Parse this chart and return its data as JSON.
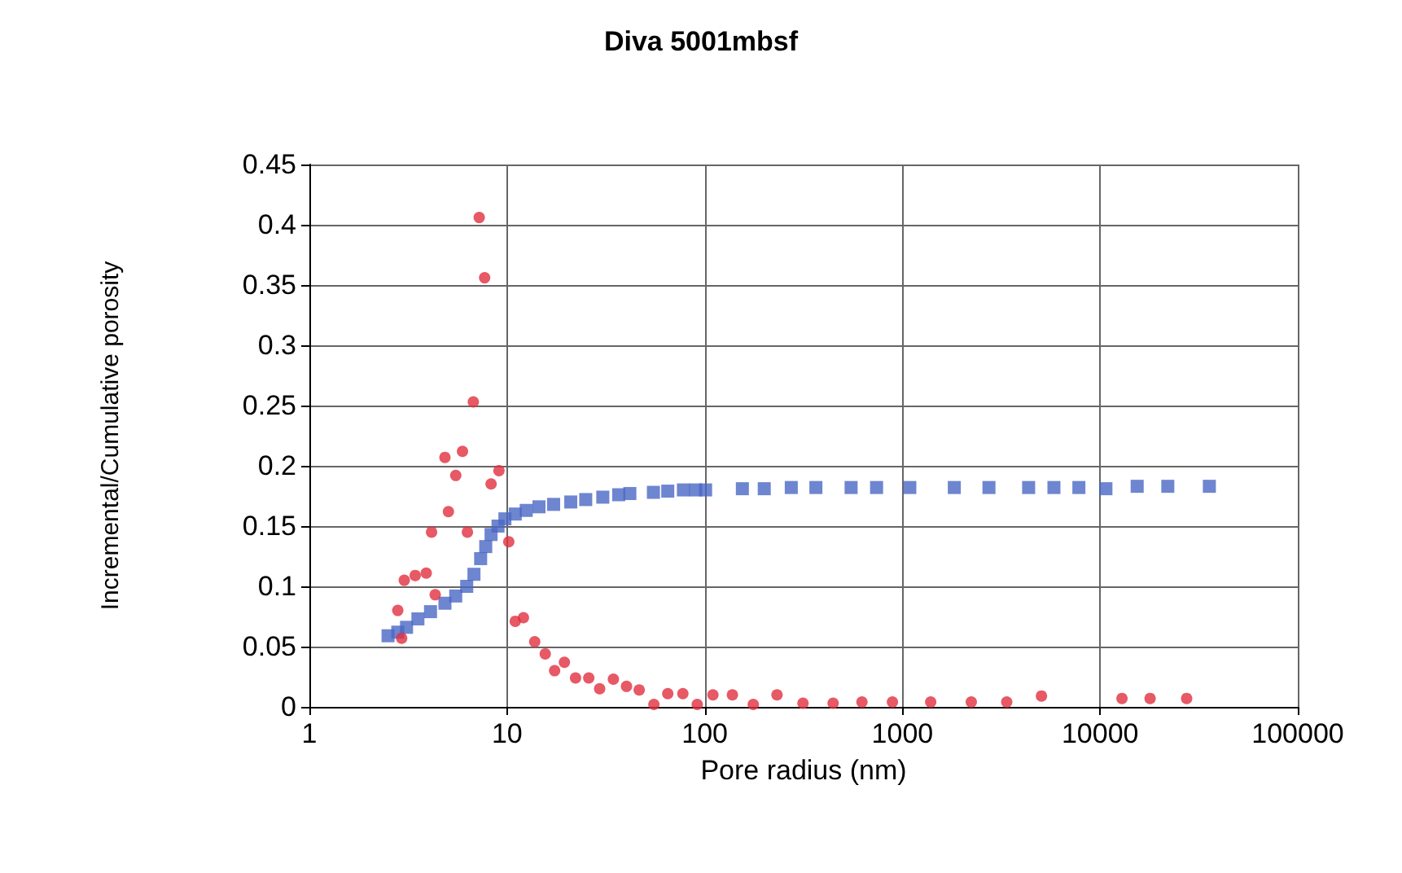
{
  "chart_data": {
    "type": "scatter",
    "title": "Diva 5001mbsf",
    "xlabel": "Pore radius (nm)",
    "ylabel": "Incremental/Cumulative porosity",
    "log": "x",
    "grid": true,
    "xlim": [
      1,
      100000
    ],
    "xticks": [
      1,
      10,
      100,
      1000,
      10000,
      100000
    ],
    "ylim": [
      0,
      0.45
    ],
    "yticks": [
      0,
      0.05,
      0.1,
      0.15,
      0.2,
      0.25,
      0.3,
      0.35,
      0.4,
      0.45
    ],
    "series": [
      {
        "color": "#4a66c4",
        "marker": "square",
        "x": [
          2.5,
          2.8,
          3.1,
          3.54,
          4.1,
          4.85,
          5.5,
          6.25,
          6.8,
          7.35,
          7.8,
          8.3,
          9.0,
          9.75,
          11,
          12.5,
          14.5,
          17.2,
          21,
          25,
          30.5,
          36.7,
          41.8,
          55,
          65,
          78,
          90,
          101,
          155,
          200,
          274,
          365,
          550,
          740,
          1090,
          1830,
          2740,
          4350,
          5840,
          7810,
          10700,
          15400,
          22000,
          35700
        ],
        "values": [
          0.059,
          0.062,
          0.066,
          0.073,
          0.079,
          0.086,
          0.092,
          0.1,
          0.11,
          0.123,
          0.133,
          0.143,
          0.15,
          0.156,
          0.16,
          0.163,
          0.166,
          0.168,
          0.17,
          0.172,
          0.174,
          0.176,
          0.177,
          0.178,
          0.179,
          0.18,
          0.18,
          0.18,
          0.181,
          0.181,
          0.182,
          0.182,
          0.182,
          0.182,
          0.182,
          0.182,
          0.182,
          0.182,
          0.182,
          0.182,
          0.181,
          0.183,
          0.183,
          0.183
        ]
      },
      {
        "color": "#e0303e",
        "marker": "circle",
        "x": [
          2.8,
          2.93,
          3.02,
          3.43,
          3.9,
          4.15,
          4.33,
          4.85,
          5.05,
          5.5,
          5.95,
          6.3,
          6.75,
          7.23,
          7.7,
          8.3,
          9.1,
          10.2,
          11,
          12.1,
          13.8,
          15.6,
          17.4,
          19.5,
          22.2,
          25.9,
          29.4,
          34.5,
          40.2,
          46.6,
          55.3,
          65,
          77.5,
          91.6,
          110,
          138,
          176,
          232,
          314,
          446,
          624,
          890,
          1390,
          2230,
          3370,
          5050,
          12900,
          17900,
          27400
        ],
        "values": [
          0.08,
          0.057,
          0.105,
          0.109,
          0.111,
          0.145,
          0.093,
          0.207,
          0.162,
          0.192,
          0.212,
          0.145,
          0.253,
          0.406,
          0.356,
          0.185,
          0.196,
          0.137,
          0.071,
          0.074,
          0.054,
          0.044,
          0.03,
          0.037,
          0.024,
          0.024,
          0.015,
          0.023,
          0.017,
          0.014,
          0.002,
          0.011,
          0.011,
          0.002,
          0.01,
          0.01,
          0.002,
          0.01,
          0.003,
          0.003,
          0.004,
          0.004,
          0.004,
          0.004,
          0.004,
          0.009,
          0.007,
          0.007,
          0.007
        ]
      }
    ]
  }
}
